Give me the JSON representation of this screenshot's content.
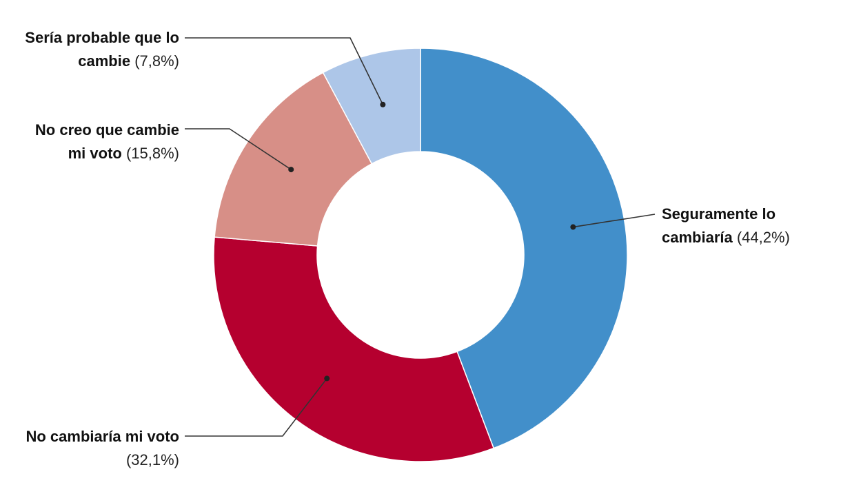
{
  "chart_data": {
    "type": "pie",
    "donut": true,
    "categories": [
      "Seguramente lo cambiaría",
      "No cambiaría mi voto",
      "No creo que cambie mi voto",
      "Sería probable que lo cambie"
    ],
    "values": [
      44.2,
      32.1,
      15.8,
      7.8
    ],
    "value_labels": [
      "(44,2%)",
      "(32,1%)",
      "(15,8%)",
      "(7,8%)"
    ],
    "label_lines": [
      [
        "Seguramente lo",
        "cambiaría"
      ],
      [
        "No cambiaría mi voto"
      ],
      [
        "No creo que cambie",
        "mi voto"
      ],
      [
        "Sería probable que lo",
        "cambie"
      ]
    ],
    "colors": [
      "#428fca",
      "#b5002f",
      "#d78f87",
      "#adc6e8"
    ],
    "title": "",
    "legend": "none",
    "unit": "%"
  }
}
